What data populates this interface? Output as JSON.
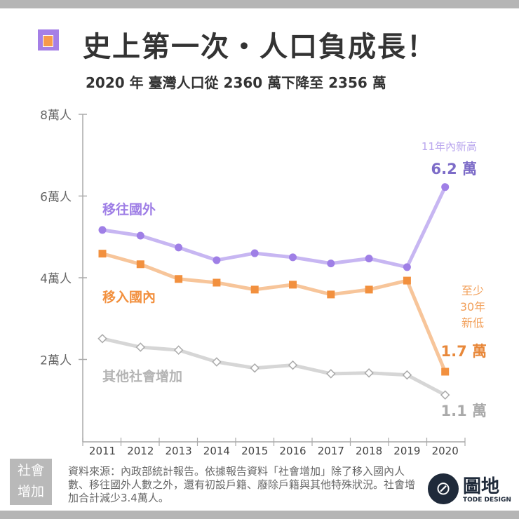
{
  "header": {
    "title": "史上第一次・人口負成長！",
    "subtitle": "2020 年 臺灣人口從 2360 萬下降至 2356 萬"
  },
  "chart_data": {
    "type": "line",
    "categories": [
      "2011",
      "2012",
      "2013",
      "2014",
      "2015",
      "2016",
      "2017",
      "2018",
      "2019",
      "2020"
    ],
    "ylim": [
      0,
      8
    ],
    "yticks": [
      {
        "v": 2,
        "label": "2萬人"
      },
      {
        "v": 4,
        "label": "4萬人"
      },
      {
        "v": 6,
        "label": "6萬人"
      },
      {
        "v": 8,
        "label": "8萬人"
      }
    ],
    "grid": false,
    "series": [
      {
        "name": "移往國外",
        "color": "#9f7fe6",
        "line_color": "#c7b6f2",
        "marker": "circle",
        "values": [
          5.17,
          5.03,
          4.74,
          4.43,
          4.6,
          4.5,
          4.35,
          4.47,
          4.26,
          6.22
        ]
      },
      {
        "name": "移入國內",
        "color": "#f2903e",
        "line_color": "#f7c59a",
        "marker": "square",
        "values": [
          4.59,
          4.33,
          3.97,
          3.88,
          3.71,
          3.83,
          3.59,
          3.71,
          3.93,
          1.7
        ]
      },
      {
        "name": "其他社會增加",
        "color": "#b4b4b4",
        "line_color": "#d6d6d6",
        "marker": "diamond",
        "values": [
          2.51,
          2.3,
          2.23,
          1.94,
          1.79,
          1.86,
          1.65,
          1.67,
          1.62,
          1.13
        ]
      }
    ],
    "annotations": {
      "purple_note": "11年內新高",
      "purple_value": "6.2 萬",
      "orange_note": [
        "至少",
        "30年",
        "新低"
      ],
      "orange_value": "1.7 萬",
      "gray_value": "1.1 萬"
    }
  },
  "footer": {
    "box_label": [
      "社會",
      "增加"
    ],
    "note": "資料來源：內政部統計報告。依據報告資料「社會增加」除了移入國內人數、移往國外人數之外，還有初設戶籍、廢除戶籍與其他特殊狀況。社會增加合計減少3.4萬人。",
    "logo_text": "圖地",
    "logo_sub": "TODE DESIGN"
  }
}
